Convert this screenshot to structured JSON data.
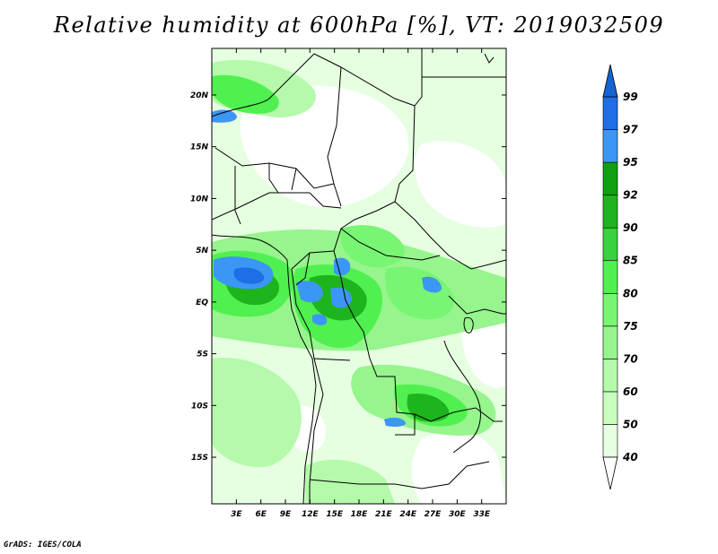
{
  "title": "Relative humidity at 600hPa [%], VT: 2019032509",
  "credit": "GrADS: IGES/COLA",
  "map": {
    "lat_range": [
      -19.5,
      24.5
    ],
    "lon_range": [
      0,
      36
    ],
    "lat_ticks": [
      {
        "value": 20,
        "label": "20N"
      },
      {
        "value": 15,
        "label": "15N"
      },
      {
        "value": 10,
        "label": "10N"
      },
      {
        "value": 5,
        "label": "5N"
      },
      {
        "value": 0,
        "label": "EQ"
      },
      {
        "value": -5,
        "label": "5S"
      },
      {
        "value": -10,
        "label": "10S"
      },
      {
        "value": -15,
        "label": "15S"
      }
    ],
    "lon_ticks": [
      {
        "value": 3,
        "label": "3E"
      },
      {
        "value": 6,
        "label": "6E"
      },
      {
        "value": 9,
        "label": "9E"
      },
      {
        "value": 12,
        "label": "12E"
      },
      {
        "value": 15,
        "label": "15E"
      },
      {
        "value": 18,
        "label": "18E"
      },
      {
        "value": 21,
        "label": "21E"
      },
      {
        "value": 24,
        "label": "24E"
      },
      {
        "value": 27,
        "label": "27E"
      },
      {
        "value": 30,
        "label": "30E"
      },
      {
        "value": 33,
        "label": "33E"
      }
    ]
  },
  "colorbar": {
    "levels": [
      {
        "label": "40",
        "color": "#e6ffe1"
      },
      {
        "label": "50",
        "color": "#c8ffbe"
      },
      {
        "label": "60",
        "color": "#b4faaa"
      },
      {
        "label": "70",
        "color": "#96f58c"
      },
      {
        "label": "75",
        "color": "#78f573"
      },
      {
        "label": "80",
        "color": "#50f050"
      },
      {
        "label": "85",
        "color": "#37d23c"
      },
      {
        "label": "90",
        "color": "#1eb41e"
      },
      {
        "label": "92",
        "color": "#0fa00f"
      },
      {
        "label": "95",
        "color": "#3c96f5"
      },
      {
        "label": "97",
        "color": "#1e6ee6"
      },
      {
        "label": "99",
        "color": "#1464d2"
      }
    ],
    "below_color": "#ffffff"
  }
}
